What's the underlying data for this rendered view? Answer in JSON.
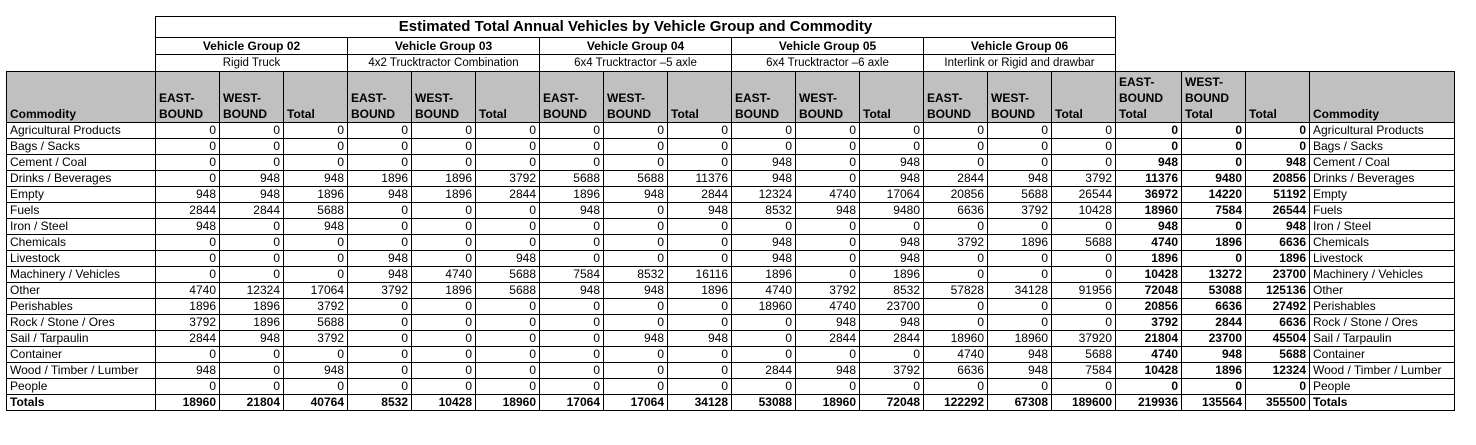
{
  "title": "Estimated Total Annual Vehicles by Vehicle Group and Commodity",
  "vehicle_groups": [
    {
      "name": "Vehicle Group 02",
      "desc": "Rigid Truck"
    },
    {
      "name": "Vehicle Group 03",
      "desc": "4x2 Trucktractor Combination"
    },
    {
      "name": "Vehicle Group 04",
      "desc": "6x4 Trucktractor –5 axle"
    },
    {
      "name": "Vehicle Group 05",
      "desc": "6x4 Trucktractor –6 axle"
    },
    {
      "name": "Vehicle Group 06",
      "desc": "Interlink or Rigid and drawbar"
    }
  ],
  "headers": {
    "commodity": "Commodity",
    "east": "EAST-BOUND",
    "west": "WEST-BOUND",
    "total": "Total",
    "east_total": "EAST-BOUND Total",
    "west_total": "WEST-BOUND Total",
    "grand_total": "Total",
    "commodity_right": "Commodity"
  },
  "rows": [
    {
      "label": "Agricultural Products",
      "values": [
        "0",
        "0",
        "0",
        "0",
        "0",
        "0",
        "0",
        "0",
        "0",
        "0",
        "0",
        "0",
        "0",
        "0",
        "0",
        "0",
        "0",
        "0"
      ]
    },
    {
      "label": "Bags / Sacks",
      "values": [
        "0",
        "0",
        "0",
        "0",
        "0",
        "0",
        "0",
        "0",
        "0",
        "0",
        "0",
        "0",
        "0",
        "0",
        "0",
        "0",
        "0",
        "0"
      ]
    },
    {
      "label": "Cement / Coal",
      "values": [
        "0",
        "0",
        "0",
        "0",
        "0",
        "0",
        "0",
        "0",
        "0",
        "948",
        "0",
        "948",
        "0",
        "0",
        "0",
        "948",
        "0",
        "948"
      ]
    },
    {
      "label": "Drinks / Beverages",
      "values": [
        "0",
        "948",
        "948",
        "1896",
        "1896",
        "3792",
        "5688",
        "5688",
        "11376",
        "948",
        "0",
        "948",
        "2844",
        "948",
        "3792",
        "11376",
        "9480",
        "20856"
      ]
    },
    {
      "label": "Empty",
      "values": [
        "948",
        "948",
        "1896",
        "948",
        "1896",
        "2844",
        "1896",
        "948",
        "2844",
        "12324",
        "4740",
        "17064",
        "20856",
        "5688",
        "26544",
        "36972",
        "14220",
        "51192"
      ]
    },
    {
      "label": "Fuels",
      "values": [
        "2844",
        "2844",
        "5688",
        "0",
        "0",
        "0",
        "948",
        "0",
        "948",
        "8532",
        "948",
        "9480",
        "6636",
        "3792",
        "10428",
        "18960",
        "7584",
        "26544"
      ]
    },
    {
      "label": "Iron / Steel",
      "values": [
        "948",
        "0",
        "948",
        "0",
        "0",
        "0",
        "0",
        "0",
        "0",
        "0",
        "0",
        "0",
        "0",
        "0",
        "0",
        "948",
        "0",
        "948"
      ]
    },
    {
      "label": "Chemicals",
      "values": [
        "0",
        "0",
        "0",
        "0",
        "0",
        "0",
        "0",
        "0",
        "0",
        "948",
        "0",
        "948",
        "3792",
        "1896",
        "5688",
        "4740",
        "1896",
        "6636"
      ]
    },
    {
      "label": "Livestock",
      "values": [
        "0",
        "0",
        "0",
        "948",
        "0",
        "948",
        "0",
        "0",
        "0",
        "948",
        "0",
        "948",
        "0",
        "0",
        "0",
        "1896",
        "0",
        "1896"
      ]
    },
    {
      "label": "Machinery / Vehicles",
      "values": [
        "0",
        "0",
        "0",
        "948",
        "4740",
        "5688",
        "7584",
        "8532",
        "16116",
        "1896",
        "0",
        "1896",
        "0",
        "0",
        "0",
        "10428",
        "13272",
        "23700"
      ]
    },
    {
      "label": "Other",
      "values": [
        "4740",
        "12324",
        "17064",
        "3792",
        "1896",
        "5688",
        "948",
        "948",
        "1896",
        "4740",
        "3792",
        "8532",
        "57828",
        "34128",
        "91956",
        "72048",
        "53088",
        "125136"
      ]
    },
    {
      "label": "Perishables",
      "values": [
        "1896",
        "1896",
        "3792",
        "0",
        "0",
        "0",
        "0",
        "0",
        "0",
        "18960",
        "4740",
        "23700",
        "0",
        "0",
        "0",
        "20856",
        "6636",
        "27492"
      ]
    },
    {
      "label": "Rock / Stone / Ores",
      "values": [
        "3792",
        "1896",
        "5688",
        "0",
        "0",
        "0",
        "0",
        "0",
        "0",
        "0",
        "948",
        "948",
        "0",
        "0",
        "0",
        "3792",
        "2844",
        "6636"
      ]
    },
    {
      "label": "Sail / Tarpaulin",
      "values": [
        "2844",
        "948",
        "3792",
        "0",
        "0",
        "0",
        "0",
        "948",
        "948",
        "0",
        "2844",
        "2844",
        "18960",
        "18960",
        "37920",
        "21804",
        "23700",
        "45504"
      ]
    },
    {
      "label": "Container",
      "values": [
        "0",
        "0",
        "0",
        "0",
        "0",
        "0",
        "0",
        "0",
        "0",
        "0",
        "0",
        "0",
        "4740",
        "948",
        "5688",
        "4740",
        "948",
        "5688"
      ]
    },
    {
      "label": "Wood / Timber / Lumber",
      "values": [
        "948",
        "0",
        "948",
        "0",
        "0",
        "0",
        "0",
        "0",
        "0",
        "2844",
        "948",
        "3792",
        "6636",
        "948",
        "7584",
        "10428",
        "1896",
        "12324"
      ]
    },
    {
      "label": "People",
      "values": [
        "0",
        "0",
        "0",
        "0",
        "0",
        "0",
        "0",
        "0",
        "0",
        "0",
        "0",
        "0",
        "0",
        "0",
        "0",
        "0",
        "0",
        "0"
      ]
    }
  ],
  "totals": {
    "label": "Totals",
    "values": [
      "18960",
      "21804",
      "40764",
      "8532",
      "10428",
      "18960",
      "17064",
      "17064",
      "34128",
      "53088",
      "18960",
      "72048",
      "122292",
      "67308",
      "189600",
      "219936",
      "135564",
      "355500"
    ]
  }
}
